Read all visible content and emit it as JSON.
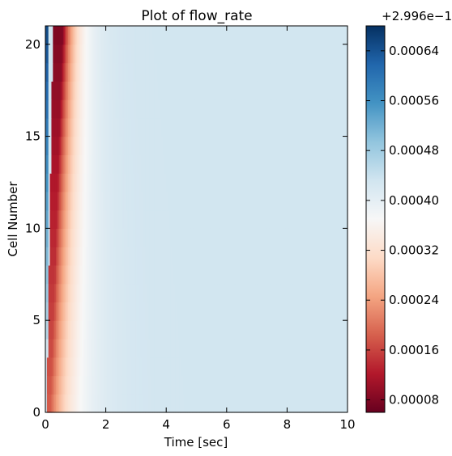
{
  "chart_data": {
    "type": "heatmap",
    "title": "Plot of flow_rate",
    "xlabel": "Time [sec]",
    "ylabel": "Cell Number",
    "xlim": [
      0,
      10
    ],
    "ylim": [
      0,
      21
    ],
    "x_ticks": [
      "0",
      "2",
      "4",
      "6",
      "8",
      "10"
    ],
    "y_ticks": [
      "0",
      "5",
      "10",
      "15",
      "20"
    ],
    "colormap": "RdBu",
    "colorbar": {
      "offset_label": "+2.996e−1",
      "range": [
        6e-05,
        0.00068
      ],
      "tick_values": [
        8e-05,
        0.00016,
        0.00024,
        0.00032,
        0.0004,
        0.00048,
        0.00056,
        0.00064
      ],
      "tick_labels": [
        "0.00008",
        "0.00016",
        "0.00024",
        "0.00032",
        "0.00040",
        "0.00048",
        "0.00056",
        "0.00064"
      ]
    },
    "field": {
      "cells": 21,
      "baseline": 0.00043,
      "initial_transient": {
        "start_cell": 4,
        "end_cell": 21,
        "value_at_start": 0.00046,
        "value_at_end": 0.00066,
        "duration": 0.1
      },
      "low_front": {
        "min_value": 7e-05,
        "depth_bottom": 0.00025,
        "depth_top": 0.00035,
        "arrival_time_bottom": 0.05,
        "arrival_time_top": 0.25,
        "width_bottom": 0.12,
        "width_top": 0.32
      },
      "recovery": {
        "speed_bottom": 0.7,
        "speed_top": 0.45
      }
    }
  }
}
